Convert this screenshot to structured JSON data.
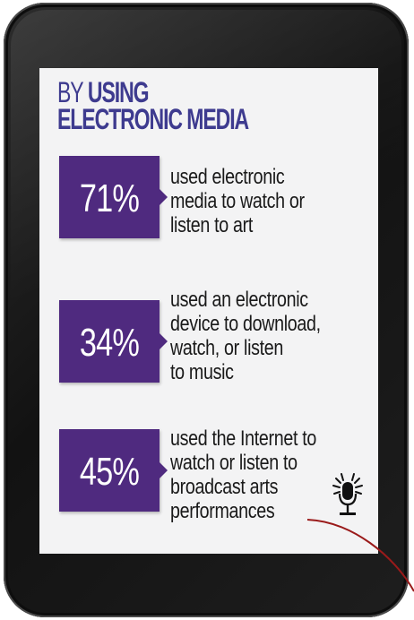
{
  "headline": {
    "prefix": "BY",
    "emphasis": "USING",
    "line2": "ELECTRONIC MEDIA"
  },
  "stats": [
    {
      "value": "71%",
      "text": "used electronic\nmedia to watch or\nlisten to art"
    },
    {
      "value": "34%",
      "text": "used an electronic\ndevice to download,\nwatch, or listen\nto music"
    },
    {
      "value": "45%",
      "text": "used the Internet to\nwatch or listen to\nbroadcast arts\nperformances"
    }
  ],
  "icons": {
    "broadcast": "microphone-icon"
  },
  "colors": {
    "accent": "#4f2a7f",
    "headline": "#3e3b8f",
    "screen": "#f3f3f4",
    "bezel": "#1a1a1a",
    "curve": "#9a1a1a"
  }
}
